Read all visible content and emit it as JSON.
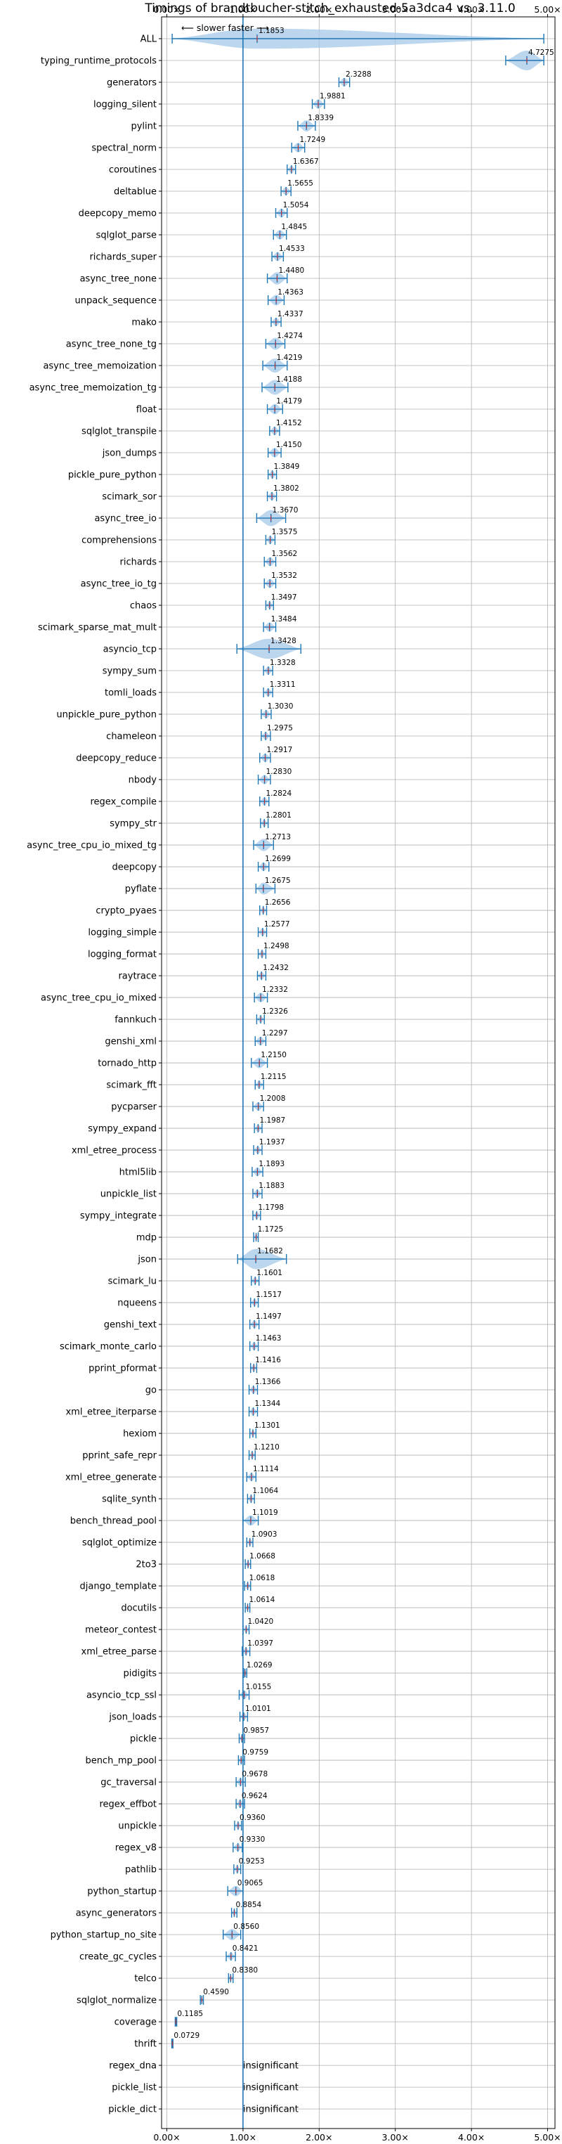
{
  "chart_data": {
    "type": "violin",
    "title": "Timings of brandtbucher-stitch_exhausted-5a3dca4 vs. 3.11.0",
    "annotation": "⟵ slower    faster ⟶",
    "xlim": [
      0,
      5.1
    ],
    "xticks": [
      0,
      1,
      2,
      3,
      4,
      5
    ],
    "xtick_labels": [
      "0.00×",
      "1.00×",
      "2.00×",
      "3.00×",
      "4.00×",
      "5.00×"
    ],
    "reference_line": 1.0,
    "grid": true,
    "colors": {
      "violin": "#a6c8e8",
      "accent": "#1f77b4",
      "median": "#d62728"
    },
    "benchmarks": [
      {
        "name": "ALL",
        "value": 1.1853,
        "label": "1.1853",
        "lo": 0.07,
        "hi": 4.95
      },
      {
        "name": "typing_runtime_protocols",
        "value": 4.7275,
        "label": "4.7275",
        "lo": 4.45,
        "hi": 4.95
      },
      {
        "name": "generators",
        "value": 2.3288,
        "label": "2.3288",
        "lo": 2.26,
        "hi": 2.4
      },
      {
        "name": "logging_silent",
        "value": 1.9881,
        "label": "1.9881",
        "lo": 1.91,
        "hi": 2.07
      },
      {
        "name": "pylint",
        "value": 1.8339,
        "label": "1.8339",
        "lo": 1.72,
        "hi": 1.95
      },
      {
        "name": "spectral_norm",
        "value": 1.7249,
        "label": "1.7249",
        "lo": 1.64,
        "hi": 1.81
      },
      {
        "name": "coroutines",
        "value": 1.6367,
        "label": "1.6367",
        "lo": 1.58,
        "hi": 1.69
      },
      {
        "name": "deltablue",
        "value": 1.5655,
        "label": "1.5655",
        "lo": 1.5,
        "hi": 1.63
      },
      {
        "name": "deepcopy_memo",
        "value": 1.5054,
        "label": "1.5054",
        "lo": 1.43,
        "hi": 1.58
      },
      {
        "name": "sqlglot_parse",
        "value": 1.4845,
        "label": "1.4845",
        "lo": 1.4,
        "hi": 1.57
      },
      {
        "name": "richards_super",
        "value": 1.4533,
        "label": "1.4533",
        "lo": 1.38,
        "hi": 1.53
      },
      {
        "name": "async_tree_none",
        "value": 1.448,
        "label": "1.4480",
        "lo": 1.32,
        "hi": 1.58
      },
      {
        "name": "unpack_sequence",
        "value": 1.4363,
        "label": "1.4363",
        "lo": 1.33,
        "hi": 1.54
      },
      {
        "name": "mako",
        "value": 1.4337,
        "label": "1.4337",
        "lo": 1.37,
        "hi": 1.5
      },
      {
        "name": "async_tree_none_tg",
        "value": 1.4274,
        "label": "1.4274",
        "lo": 1.3,
        "hi": 1.55
      },
      {
        "name": "async_tree_memoization",
        "value": 1.4219,
        "label": "1.4219",
        "lo": 1.26,
        "hi": 1.58
      },
      {
        "name": "async_tree_memoization_tg",
        "value": 1.4188,
        "label": "1.4188",
        "lo": 1.25,
        "hi": 1.59
      },
      {
        "name": "float",
        "value": 1.4179,
        "label": "1.4179",
        "lo": 1.32,
        "hi": 1.52
      },
      {
        "name": "sqlglot_transpile",
        "value": 1.4152,
        "label": "1.4152",
        "lo": 1.35,
        "hi": 1.48
      },
      {
        "name": "json_dumps",
        "value": 1.415,
        "label": "1.4150",
        "lo": 1.33,
        "hi": 1.5
      },
      {
        "name": "pickle_pure_python",
        "value": 1.3849,
        "label": "1.3849",
        "lo": 1.33,
        "hi": 1.44
      },
      {
        "name": "scimark_sor",
        "value": 1.3802,
        "label": "1.3802",
        "lo": 1.32,
        "hi": 1.44
      },
      {
        "name": "async_tree_io",
        "value": 1.367,
        "label": "1.3670",
        "lo": 1.18,
        "hi": 1.56
      },
      {
        "name": "comprehensions",
        "value": 1.3575,
        "label": "1.3575",
        "lo": 1.3,
        "hi": 1.42
      },
      {
        "name": "richards",
        "value": 1.3562,
        "label": "1.3562",
        "lo": 1.28,
        "hi": 1.43
      },
      {
        "name": "async_tree_io_tg",
        "value": 1.3532,
        "label": "1.3532",
        "lo": 1.28,
        "hi": 1.43
      },
      {
        "name": "chaos",
        "value": 1.3497,
        "label": "1.3497",
        "lo": 1.3,
        "hi": 1.4
      },
      {
        "name": "scimark_sparse_mat_mult",
        "value": 1.3484,
        "label": "1.3484",
        "lo": 1.27,
        "hi": 1.43
      },
      {
        "name": "asyncio_tcp",
        "value": 1.3428,
        "label": "1.3428",
        "lo": 0.92,
        "hi": 1.76
      },
      {
        "name": "sympy_sum",
        "value": 1.3328,
        "label": "1.3328",
        "lo": 1.27,
        "hi": 1.39
      },
      {
        "name": "tomli_loads",
        "value": 1.3311,
        "label": "1.3311",
        "lo": 1.27,
        "hi": 1.39
      },
      {
        "name": "unpickle_pure_python",
        "value": 1.303,
        "label": "1.3030",
        "lo": 1.24,
        "hi": 1.37
      },
      {
        "name": "chameleon",
        "value": 1.2975,
        "label": "1.2975",
        "lo": 1.24,
        "hi": 1.36
      },
      {
        "name": "deepcopy_reduce",
        "value": 1.2917,
        "label": "1.2917",
        "lo": 1.22,
        "hi": 1.36
      },
      {
        "name": "nbody",
        "value": 1.283,
        "label": "1.2830",
        "lo": 1.2,
        "hi": 1.36
      },
      {
        "name": "regex_compile",
        "value": 1.2824,
        "label": "1.2824",
        "lo": 1.22,
        "hi": 1.34
      },
      {
        "name": "sympy_str",
        "value": 1.2801,
        "label": "1.2801",
        "lo": 1.23,
        "hi": 1.33
      },
      {
        "name": "async_tree_cpu_io_mixed_tg",
        "value": 1.2713,
        "label": "1.2713",
        "lo": 1.14,
        "hi": 1.4
      },
      {
        "name": "deepcopy",
        "value": 1.2699,
        "label": "1.2699",
        "lo": 1.2,
        "hi": 1.34
      },
      {
        "name": "pyflate",
        "value": 1.2675,
        "label": "1.2675",
        "lo": 1.17,
        "hi": 1.42
      },
      {
        "name": "crypto_pyaes",
        "value": 1.2656,
        "label": "1.2656",
        "lo": 1.22,
        "hi": 1.31
      },
      {
        "name": "logging_simple",
        "value": 1.2577,
        "label": "1.2577",
        "lo": 1.2,
        "hi": 1.31
      },
      {
        "name": "logging_format",
        "value": 1.2498,
        "label": "1.2498",
        "lo": 1.2,
        "hi": 1.3
      },
      {
        "name": "raytrace",
        "value": 1.2432,
        "label": "1.2432",
        "lo": 1.19,
        "hi": 1.3
      },
      {
        "name": "async_tree_cpu_io_mixed",
        "value": 1.2332,
        "label": "1.2332",
        "lo": 1.15,
        "hi": 1.32
      },
      {
        "name": "fannkuch",
        "value": 1.2326,
        "label": "1.2326",
        "lo": 1.18,
        "hi": 1.28
      },
      {
        "name": "genshi_xml",
        "value": 1.2297,
        "label": "1.2297",
        "lo": 1.16,
        "hi": 1.3
      },
      {
        "name": "tornado_http",
        "value": 1.215,
        "label": "1.2150",
        "lo": 1.11,
        "hi": 1.32
      },
      {
        "name": "scimark_fft",
        "value": 1.2115,
        "label": "1.2115",
        "lo": 1.16,
        "hi": 1.27
      },
      {
        "name": "pycparser",
        "value": 1.2008,
        "label": "1.2008",
        "lo": 1.13,
        "hi": 1.27
      },
      {
        "name": "sympy_expand",
        "value": 1.1987,
        "label": "1.1987",
        "lo": 1.15,
        "hi": 1.25
      },
      {
        "name": "xml_etree_process",
        "value": 1.1937,
        "label": "1.1937",
        "lo": 1.14,
        "hi": 1.25
      },
      {
        "name": "html5lib",
        "value": 1.1893,
        "label": "1.1893",
        "lo": 1.12,
        "hi": 1.26
      },
      {
        "name": "unpickle_list",
        "value": 1.1883,
        "label": "1.1883",
        "lo": 1.13,
        "hi": 1.25
      },
      {
        "name": "sympy_integrate",
        "value": 1.1798,
        "label": "1.1798",
        "lo": 1.13,
        "hi": 1.23
      },
      {
        "name": "mdp",
        "value": 1.1725,
        "label": "1.1725",
        "lo": 1.14,
        "hi": 1.2
      },
      {
        "name": "json",
        "value": 1.1682,
        "label": "1.1682",
        "lo": 0.93,
        "hi": 1.57
      },
      {
        "name": "scimark_lu",
        "value": 1.1601,
        "label": "1.1601",
        "lo": 1.11,
        "hi": 1.21
      },
      {
        "name": "nqueens",
        "value": 1.1517,
        "label": "1.1517",
        "lo": 1.1,
        "hi": 1.2
      },
      {
        "name": "genshi_text",
        "value": 1.1497,
        "label": "1.1497",
        "lo": 1.09,
        "hi": 1.21
      },
      {
        "name": "scimark_monte_carlo",
        "value": 1.1463,
        "label": "1.1463",
        "lo": 1.09,
        "hi": 1.2
      },
      {
        "name": "pprint_pformat",
        "value": 1.1416,
        "label": "1.1416",
        "lo": 1.1,
        "hi": 1.18
      },
      {
        "name": "go",
        "value": 1.1366,
        "label": "1.1366",
        "lo": 1.08,
        "hi": 1.19
      },
      {
        "name": "xml_etree_iterparse",
        "value": 1.1344,
        "label": "1.1344",
        "lo": 1.08,
        "hi": 1.19
      },
      {
        "name": "hexiom",
        "value": 1.1301,
        "label": "1.1301",
        "lo": 1.09,
        "hi": 1.17
      },
      {
        "name": "pprint_safe_repr",
        "value": 1.121,
        "label": "1.1210",
        "lo": 1.08,
        "hi": 1.16
      },
      {
        "name": "xml_etree_generate",
        "value": 1.1114,
        "label": "1.1114",
        "lo": 1.05,
        "hi": 1.17
      },
      {
        "name": "sqlite_synth",
        "value": 1.1064,
        "label": "1.1064",
        "lo": 1.06,
        "hi": 1.15
      },
      {
        "name": "bench_thread_pool",
        "value": 1.1019,
        "label": "1.1019",
        "lo": 1.0,
        "hi": 1.2
      },
      {
        "name": "sqlglot_optimize",
        "value": 1.0903,
        "label": "1.0903",
        "lo": 1.05,
        "hi": 1.13
      },
      {
        "name": "2to3",
        "value": 1.0668,
        "label": "1.0668",
        "lo": 1.03,
        "hi": 1.1
      },
      {
        "name": "django_template",
        "value": 1.0618,
        "label": "1.0618",
        "lo": 1.02,
        "hi": 1.1
      },
      {
        "name": "docutils",
        "value": 1.0614,
        "label": "1.0614",
        "lo": 1.03,
        "hi": 1.09
      },
      {
        "name": "meteor_contest",
        "value": 1.042,
        "label": "1.0420",
        "lo": 1.0,
        "hi": 1.08
      },
      {
        "name": "xml_etree_parse",
        "value": 1.0397,
        "label": "1.0397",
        "lo": 0.99,
        "hi": 1.09
      },
      {
        "name": "pidigits",
        "value": 1.0269,
        "label": "1.0269",
        "lo": 1.01,
        "hi": 1.05
      },
      {
        "name": "asyncio_tcp_ssl",
        "value": 1.0155,
        "label": "1.0155",
        "lo": 0.95,
        "hi": 1.08
      },
      {
        "name": "json_loads",
        "value": 1.0101,
        "label": "1.0101",
        "lo": 0.96,
        "hi": 1.06
      },
      {
        "name": "pickle",
        "value": 0.9857,
        "label": "0.9857",
        "lo": 0.95,
        "hi": 1.02
      },
      {
        "name": "bench_mp_pool",
        "value": 0.9759,
        "label": "0.9759",
        "lo": 0.94,
        "hi": 1.02
      },
      {
        "name": "gc_traversal",
        "value": 0.9678,
        "label": "0.9678",
        "lo": 0.91,
        "hi": 1.03
      },
      {
        "name": "regex_effbot",
        "value": 0.9624,
        "label": "0.9624",
        "lo": 0.91,
        "hi": 1.02
      },
      {
        "name": "unpickle",
        "value": 0.936,
        "label": "0.9360",
        "lo": 0.89,
        "hi": 0.98
      },
      {
        "name": "regex_v8",
        "value": 0.933,
        "label": "0.9330",
        "lo": 0.87,
        "hi": 0.99
      },
      {
        "name": "pathlib",
        "value": 0.9253,
        "label": "0.9253",
        "lo": 0.88,
        "hi": 0.97
      },
      {
        "name": "python_startup",
        "value": 0.9065,
        "label": "0.9065",
        "lo": 0.8,
        "hi": 1.0
      },
      {
        "name": "async_generators",
        "value": 0.8854,
        "label": "0.8854",
        "lo": 0.85,
        "hi": 0.92
      },
      {
        "name": "python_startup_no_site",
        "value": 0.856,
        "label": "0.8560",
        "lo": 0.74,
        "hi": 0.97
      },
      {
        "name": "create_gc_cycles",
        "value": 0.8421,
        "label": "0.8421",
        "lo": 0.78,
        "hi": 0.9
      },
      {
        "name": "telco",
        "value": 0.838,
        "label": "0.8380",
        "lo": 0.81,
        "hi": 0.87
      },
      {
        "name": "sqlglot_normalize",
        "value": 0.459,
        "label": "0.4590",
        "lo": 0.44,
        "hi": 0.48
      },
      {
        "name": "coverage",
        "value": 0.1185,
        "label": "0.1185",
        "lo": 0.11,
        "hi": 0.13
      },
      {
        "name": "thrift",
        "value": 0.0729,
        "label": "0.0729",
        "lo": 0.065,
        "hi": 0.08
      },
      {
        "name": "regex_dna",
        "insignificant": true,
        "label": "insignificant"
      },
      {
        "name": "pickle_list",
        "insignificant": true,
        "label": "insignificant"
      },
      {
        "name": "pickle_dict",
        "insignificant": true,
        "label": "insignificant"
      }
    ]
  }
}
